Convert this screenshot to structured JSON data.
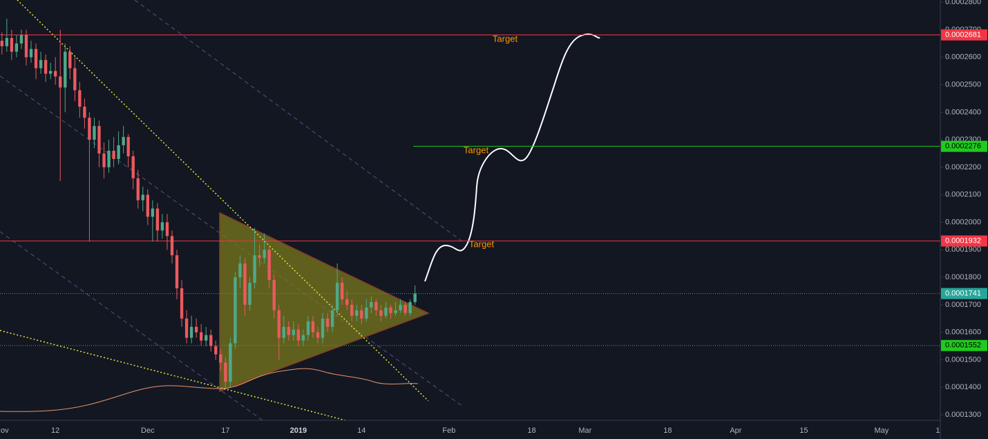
{
  "chart_data": {
    "type": "candlestick",
    "x": [
      -1,
      0,
      1,
      2,
      3,
      4,
      5,
      6,
      7,
      8,
      9,
      10,
      11,
      12,
      13,
      14,
      15,
      16,
      17,
      18,
      19,
      20,
      21,
      22,
      23,
      24,
      25,
      26,
      27,
      28,
      29,
      30,
      31,
      32,
      33,
      34,
      35,
      36,
      37,
      38,
      39,
      40,
      41,
      42,
      43,
      44,
      45,
      46,
      47,
      48,
      49,
      50,
      51,
      52,
      53,
      54,
      55,
      56,
      57,
      58,
      59,
      60,
      61,
      62,
      63,
      64,
      65,
      66,
      67,
      68,
      69,
      70,
      71,
      72,
      73,
      74,
      75,
      76,
      77,
      78,
      79,
      80,
      81,
      82,
      83,
      84,
      85
    ],
    "open": [
      0.000268,
      0.000266,
      0.000264,
      0.000267,
      0.000262,
      0.000265,
      0.000268,
      0.00026,
      0.000263,
      0.000256,
      0.000259,
      0.000254,
      0.000255,
      0.000253,
      0.000249,
      0.000262,
      0.000256,
      0.000248,
      0.000242,
      0.000238,
      0.00023,
      0.000235,
      0.000225,
      0.00022,
      0.000226,
      0.000223,
      0.000228,
      0.000231,
      0.000224,
      0.000216,
      0.000208,
      0.00021,
      0.000202,
      0.000205,
      0.000197,
      0.0002,
      0.000195,
      0.000188,
      0.000176,
      0.000165,
      0.000158,
      0.000162,
      0.00016,
      0.000157,
      0.000159,
      0.000155,
      0.000152,
      0.000149,
      0.000142,
      0.000156,
      0.00018,
      0.000185,
      0.00017,
      0.000178,
      0.000188,
      0.000187,
      0.00019,
      0.000179,
      0.000168,
      0.000158,
      0.000162,
      0.000159,
      0.000161,
      0.000157,
      0.000159,
      0.000164,
      0.00016,
      0.000158,
      0.000165,
      0.000162,
      0.000168,
      0.000178,
      0.000172,
      0.00017,
      0.000166,
      0.000168,
      0.000165,
      0.000169,
      0.000171,
      0.000168,
      0.000166,
      0.000169,
      0.000167,
      0.000168,
      0.00017,
      0.000167,
      0.000171
    ],
    "high": [
      0.000271,
      0.000269,
      0.000274,
      0.00027,
      0.000268,
      0.00027,
      0.00027,
      0.000266,
      0.000265,
      0.000262,
      0.000261,
      0.000258,
      0.00026,
      0.00027,
      0.000265,
      0.000264,
      0.00026,
      0.000251,
      0.000245,
      0.00024,
      0.000238,
      0.000237,
      0.000229,
      0.00023,
      0.000231,
      0.000233,
      0.000235,
      0.000232,
      0.000226,
      0.000219,
      0.000213,
      0.000212,
      0.000208,
      0.000207,
      0.000203,
      0.000203,
      0.000197,
      0.00019,
      0.000179,
      0.000168,
      0.000166,
      0.000165,
      0.000163,
      0.000162,
      0.000161,
      0.000157,
      0.000154,
      0.000151,
      0.000158,
      0.000182,
      0.000188,
      0.000187,
      0.00018,
      0.000198,
      0.000192,
      0.000196,
      0.000191,
      0.000181,
      0.00017,
      0.000166,
      0.000164,
      0.000164,
      0.000163,
      0.000161,
      0.000166,
      0.000166,
      0.000162,
      0.000167,
      0.000167,
      0.00017,
      0.000185,
      0.00018,
      0.000175,
      0.000172,
      0.00017,
      0.00017,
      0.000172,
      0.000173,
      0.000172,
      0.00017,
      0.000171,
      0.00017,
      0.000171,
      0.000172,
      0.000171,
      0.000172,
      0.000177
    ],
    "low": [
      0.000263,
      0.000261,
      0.000262,
      0.000259,
      0.00026,
      0.000263,
      0.000257,
      0.000258,
      0.000252,
      0.000254,
      0.000251,
      0.000252,
      0.00025,
      0.000215,
      0.00024,
      0.000252,
      0.000244,
      0.000238,
      0.000234,
      0.000193,
      0.000227,
      0.00022,
      0.000216,
      0.000218,
      0.00022,
      0.000221,
      0.000225,
      0.00022,
      0.000212,
      0.000205,
      0.000204,
      0.000199,
      0.000193,
      0.000193,
      0.000194,
      0.00019,
      0.000185,
      0.000172,
      0.000162,
      0.000156,
      0.000156,
      0.000158,
      0.000155,
      0.000155,
      0.000153,
      0.00015,
      0.000146,
      0.00014,
      0.00014,
      0.000154,
      0.000176,
      0.000166,
      0.000168,
      0.000176,
      0.000184,
      0.000185,
      0.000176,
      0.000165,
      0.00015,
      0.000156,
      0.000157,
      0.000157,
      0.000155,
      0.000155,
      0.000157,
      0.000158,
      0.000156,
      0.000156,
      0.00016,
      0.00016,
      0.000166,
      0.00017,
      0.000168,
      0.000164,
      0.000164,
      0.000163,
      0.000164,
      0.000167,
      0.000166,
      0.000164,
      0.000165,
      0.000165,
      0.000166,
      0.000167,
      0.000166,
      0.000166,
      0.00017
    ],
    "close": [
      0.000266,
      0.000264,
      0.000267,
      0.000262,
      0.000265,
      0.000268,
      0.00026,
      0.000263,
      0.000256,
      0.000259,
      0.000254,
      0.000255,
      0.000253,
      0.000249,
      0.000262,
      0.000256,
      0.000248,
      0.000242,
      0.000238,
      0.00023,
      0.000235,
      0.000225,
      0.00022,
      0.000226,
      0.000223,
      0.000228,
      0.000231,
      0.000224,
      0.000216,
      0.000208,
      0.00021,
      0.000202,
      0.000205,
      0.000197,
      0.0002,
      0.000195,
      0.000188,
      0.000176,
      0.000165,
      0.000158,
      0.000162,
      0.00016,
      0.000157,
      0.000159,
      0.000155,
      0.000152,
      0.000149,
      0.000142,
      0.000156,
      0.00018,
      0.000185,
      0.00017,
      0.000178,
      0.000188,
      0.000187,
      0.00019,
      0.000179,
      0.000168,
      0.000158,
      0.000162,
      0.000159,
      0.000161,
      0.000157,
      0.000159,
      0.000164,
      0.00016,
      0.000158,
      0.000165,
      0.000162,
      0.000168,
      0.000178,
      0.000172,
      0.00017,
      0.000166,
      0.000168,
      0.000165,
      0.000169,
      0.000171,
      0.000168,
      0.000166,
      0.000169,
      0.000167,
      0.000168,
      0.00017,
      0.000167,
      0.000171,
      0.0001741
    ],
    "up_color": "#4fa98a",
    "down_color": "#eb5a5f",
    "xlim": [
      -0.4,
      193.1
    ],
    "ylim": [
      0.000128,
      0.0002808
    ],
    "xticks": [
      {
        "value": 0,
        "label": "Nov"
      },
      {
        "value": 11,
        "label": "12"
      },
      {
        "value": 30,
        "label": "Dec"
      },
      {
        "value": 46,
        "label": "17"
      },
      {
        "value": 61,
        "label": "2019"
      },
      {
        "value": 74,
        "label": "14"
      },
      {
        "value": 92,
        "label": "Feb"
      },
      {
        "value": 109,
        "label": "18"
      },
      {
        "value": 120,
        "label": "Mar"
      },
      {
        "value": 137,
        "label": "18"
      },
      {
        "value": 151,
        "label": "Apr"
      },
      {
        "value": 165,
        "label": "15"
      },
      {
        "value": 181,
        "label": "May"
      },
      {
        "value": 192.6,
        "label": "1"
      }
    ],
    "yticks": [
      {
        "value": 0.00013,
        "label": "0.0001300"
      },
      {
        "value": 0.00014,
        "label": "0.0001400"
      },
      {
        "value": 0.00015,
        "label": "0.0001500"
      },
      {
        "value": 0.00016,
        "label": "0.0001600"
      },
      {
        "value": 0.00017,
        "label": "0.0001700"
      },
      {
        "value": 0.00018,
        "label": "0.0001800"
      },
      {
        "value": 0.00019,
        "label": "0.0001900"
      },
      {
        "value": 0.0002,
        "label": "0.0002000"
      },
      {
        "value": 0.00021,
        "label": "0.0002100"
      },
      {
        "value": 0.00022,
        "label": "0.0002200"
      },
      {
        "value": 0.00023,
        "label": "0.0002300"
      },
      {
        "value": 0.00024,
        "label": "0.0002400"
      },
      {
        "value": 0.00025,
        "label": "0.0002500"
      },
      {
        "value": 0.00026,
        "label": "0.0002600"
      },
      {
        "value": 0.00027,
        "label": "0.0002700"
      },
      {
        "value": 0.00028,
        "label": "0.0002800"
      }
    ],
    "levels": [
      {
        "value": 0.0002681,
        "color": "#f23645",
        "label_color": "#ffffff",
        "style": "solid"
      },
      {
        "value": 0.0002276,
        "color": "#1ecb1e",
        "label_color": "#000000",
        "style": "solid"
      },
      {
        "value": 0.0001932,
        "color": "#f23645",
        "label_color": "#ffffff",
        "style": "solid"
      },
      {
        "value": 0.0001741,
        "color": "#26a69a",
        "label_color": "#ffffff",
        "style": "dotted"
      },
      {
        "value": 0.0001552,
        "color": "#1ecb1e",
        "label_color": "#000000",
        "style": "dotted"
      }
    ],
    "annotations": [
      "Target",
      "Target",
      "Target"
    ],
    "annotation_color": "#ff9800"
  }
}
